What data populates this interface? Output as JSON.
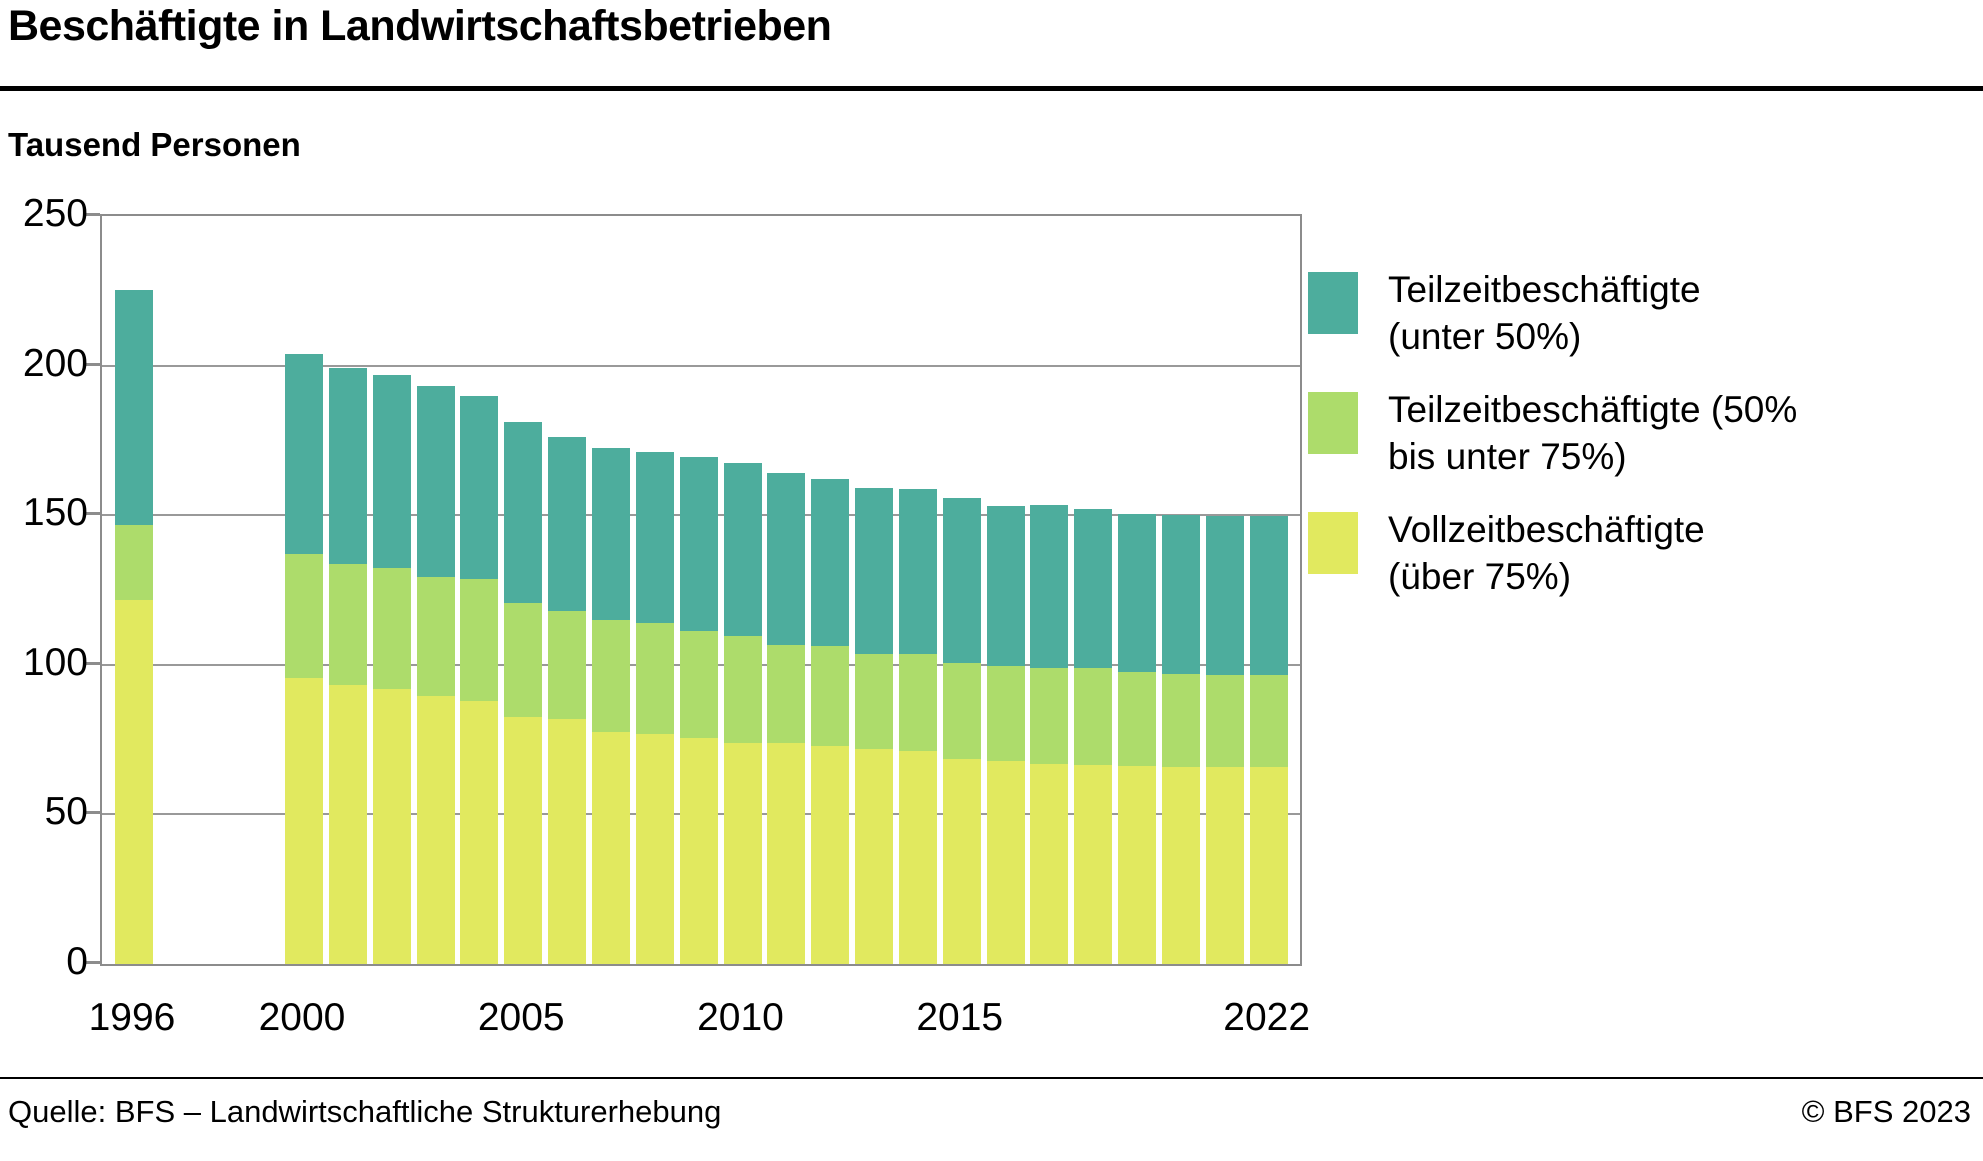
{
  "header": {
    "title": "Beschäftigte in Landwirtschaftsbetrieben",
    "subtitle_unit": "Tausend Personen"
  },
  "footer": {
    "source": "Quelle: BFS – Landwirtschaftliche Strukturerhebung",
    "copyright": "© BFS 2023"
  },
  "colors": {
    "teilzeit_unter_50": "#4DAD9D",
    "teilzeit_50_75": "#ADDC6B",
    "vollzeit": "#E1E95F",
    "grid": "#999999",
    "axis": "#8C8C8C"
  },
  "legend": [
    {
      "key": "teilzeit_unter_50",
      "label": "Teilzeitbeschäftigte (unter 50%)",
      "lines": [
        "Teilzeitbeschäftigte",
        "(unter 50%)"
      ]
    },
    {
      "key": "teilzeit_50_75",
      "label": "Teilzeitbeschäftigte (50% bis unter 75%)",
      "lines": [
        "Teilzeitbeschäftigte (50%",
        "bis unter 75%)"
      ]
    },
    {
      "key": "vollzeit",
      "label": "Vollzeitbeschäftigte (über 75%)",
      "lines": [
        "Vollzeitbeschäftigte",
        "(über 75%)"
      ]
    }
  ],
  "chart_data": {
    "type": "bar",
    "stacked": true,
    "title": "Beschäftigte in Landwirtschaftsbetrieben",
    "ylabel": "Tausend Personen",
    "ylim": [
      0,
      250
    ],
    "grid": true,
    "y_ticks": [
      250,
      200,
      150,
      100,
      50,
      0
    ],
    "x_tick_years": [
      1996,
      2000,
      2005,
      2010,
      2015,
      2022
    ],
    "x_tick_labels": [
      "1996",
      "2000",
      "2005",
      "2010",
      "2015",
      "2022"
    ],
    "series_order": [
      "vollzeit",
      "teilzeit_50_75",
      "teilzeit_unter_50"
    ],
    "series_labels": {
      "vollzeit": "Vollzeitbeschäftigte (über 75%)",
      "teilzeit_50_75": "Teilzeitbeschäftigte (50% bis unter 75%)",
      "teilzeit_unter_50": "Teilzeitbeschäftigte (unter 50%)"
    },
    "rows": [
      {
        "year": 1996,
        "vollzeit": 121.6,
        "teilzeit_50_75": 25.0,
        "teilzeit_unter_50": 78.7,
        "total": 225.3
      },
      {
        "year": 2000,
        "vollzeit": 95.5,
        "teilzeit_50_75": 41.5,
        "teilzeit_unter_50": 66.9,
        "total": 203.9
      },
      {
        "year": 2001,
        "vollzeit": 93.3,
        "teilzeit_50_75": 40.3,
        "teilzeit_unter_50": 65.5,
        "total": 199.1
      },
      {
        "year": 2002,
        "vollzeit": 92.0,
        "teilzeit_50_75": 40.5,
        "teilzeit_unter_50": 64.4,
        "total": 196.9
      },
      {
        "year": 2003,
        "vollzeit": 89.7,
        "teilzeit_50_75": 39.7,
        "teilzeit_unter_50": 63.7,
        "total": 193.1
      },
      {
        "year": 2004,
        "vollzeit": 88.0,
        "teilzeit_50_75": 40.8,
        "teilzeit_unter_50": 61.2,
        "total": 190.0
      },
      {
        "year": 2005,
        "vollzeit": 82.7,
        "teilzeit_50_75": 37.8,
        "teilzeit_unter_50": 60.5,
        "total": 181.0
      },
      {
        "year": 2006,
        "vollzeit": 81.8,
        "teilzeit_50_75": 36.2,
        "teilzeit_unter_50": 58.3,
        "total": 176.3
      },
      {
        "year": 2007,
        "vollzeit": 77.6,
        "teilzeit_50_75": 37.3,
        "teilzeit_unter_50": 57.7,
        "total": 172.6
      },
      {
        "year": 2008,
        "vollzeit": 77.0,
        "teilzeit_50_75": 36.9,
        "teilzeit_unter_50": 57.3,
        "total": 171.2
      },
      {
        "year": 2009,
        "vollzeit": 75.7,
        "teilzeit_50_75": 35.5,
        "teilzeit_unter_50": 58.4,
        "total": 169.6
      },
      {
        "year": 2010,
        "vollzeit": 74.0,
        "teilzeit_50_75": 35.6,
        "teilzeit_unter_50": 57.8,
        "total": 167.4
      },
      {
        "year": 2011,
        "vollzeit": 74.0,
        "teilzeit_50_75": 32.5,
        "teilzeit_unter_50": 57.7,
        "total": 164.2
      },
      {
        "year": 2012,
        "vollzeit": 72.7,
        "teilzeit_50_75": 33.5,
        "teilzeit_unter_50": 56.0,
        "total": 162.2
      },
      {
        "year": 2013,
        "vollzeit": 71.8,
        "teilzeit_50_75": 31.7,
        "teilzeit_unter_50": 55.7,
        "total": 159.2
      },
      {
        "year": 2014,
        "vollzeit": 71.2,
        "teilzeit_50_75": 32.3,
        "teilzeit_unter_50": 55.4,
        "total": 158.9
      },
      {
        "year": 2015,
        "vollzeit": 68.5,
        "teilzeit_50_75": 32.1,
        "teilzeit_unter_50": 55.0,
        "total": 155.6
      },
      {
        "year": 2016,
        "vollzeit": 68.0,
        "teilzeit_50_75": 31.5,
        "teilzeit_unter_50": 53.7,
        "total": 153.2
      },
      {
        "year": 2017,
        "vollzeit": 67.0,
        "teilzeit_50_75": 32.0,
        "teilzeit_unter_50": 54.4,
        "total": 153.4
      },
      {
        "year": 2018,
        "vollzeit": 66.5,
        "teilzeit_50_75": 32.3,
        "teilzeit_unter_50": 53.3,
        "total": 152.1
      },
      {
        "year": 2019,
        "vollzeit": 66.2,
        "teilzeit_50_75": 31.3,
        "teilzeit_unter_50": 52.8,
        "total": 150.3
      },
      {
        "year": 2020,
        "vollzeit": 66.0,
        "teilzeit_50_75": 30.9,
        "teilzeit_unter_50": 53.1,
        "total": 150.0
      },
      {
        "year": 2021,
        "vollzeit": 66.0,
        "teilzeit_50_75": 30.7,
        "teilzeit_unter_50": 53.2,
        "total": 149.9
      },
      {
        "year": 2022,
        "vollzeit": 66.0,
        "teilzeit_50_75": 30.5,
        "teilzeit_unter_50": 53.3,
        "total": 149.8
      }
    ]
  }
}
